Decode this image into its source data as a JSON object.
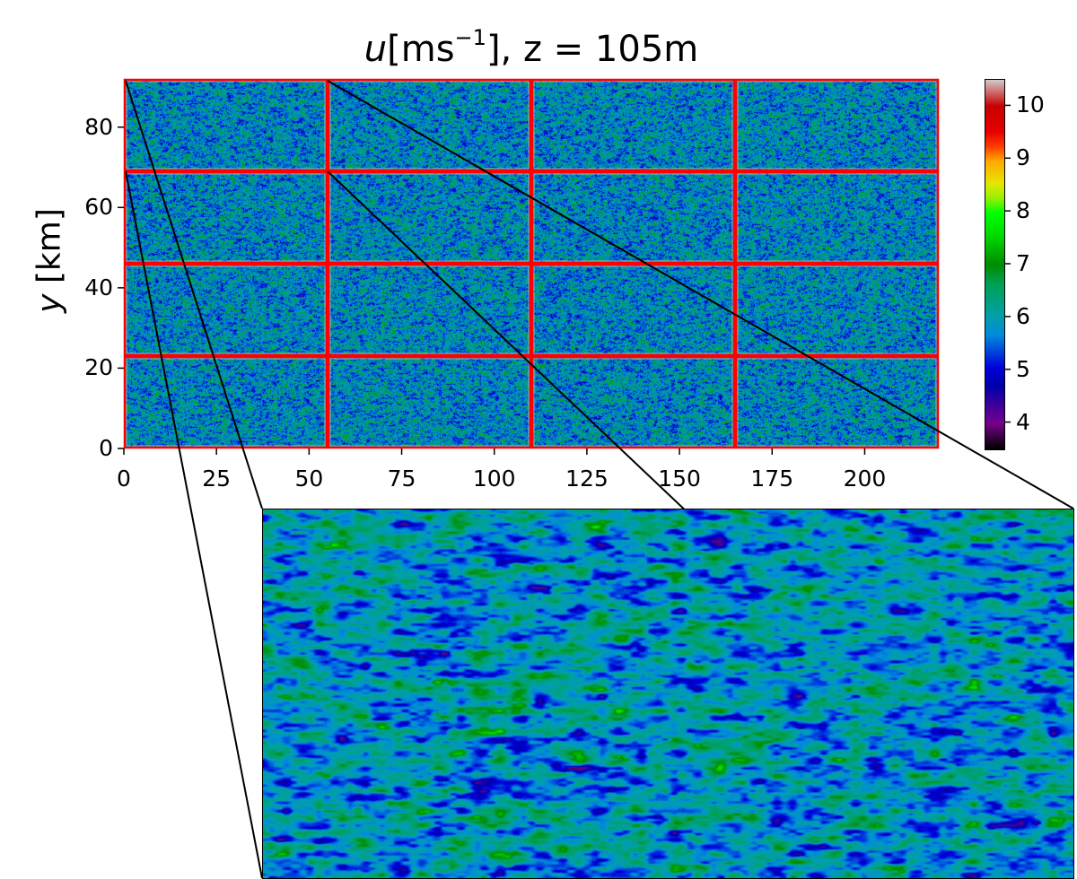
{
  "chart_data": {
    "type": "heatmap",
    "title": {
      "var": "u",
      "unit_open": "[ms",
      "unit_exp": "−1",
      "rest": "], z = 105m"
    },
    "xlabel": "",
    "ylabel": {
      "var": "y",
      "unit": " [km]"
    },
    "xlim": [
      0,
      220
    ],
    "ylim": [
      0,
      92
    ],
    "xticks": [
      "0",
      "25",
      "50",
      "75",
      "100",
      "125",
      "150",
      "175",
      "200"
    ],
    "yticks": [
      "0",
      "20",
      "40",
      "60",
      "80"
    ],
    "tiles": {
      "columns": 4,
      "rows": 4,
      "border_color": "#ff0000"
    },
    "colorbar": {
      "range": [
        3.5,
        10.5
      ],
      "ticks": [
        "4",
        "5",
        "6",
        "7",
        "8",
        "9",
        "10"
      ],
      "colormap": "nipy_spectral"
    },
    "inset": {
      "zoom_of": "top-left tile"
    }
  }
}
